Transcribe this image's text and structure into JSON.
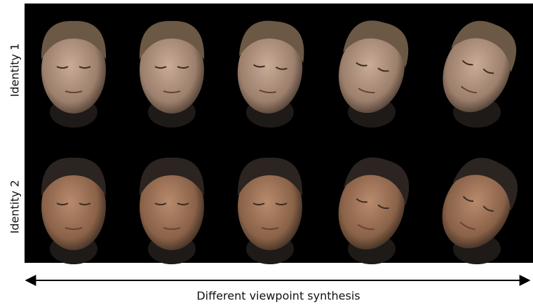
{
  "rows": [
    {
      "label": "Identity 1"
    },
    {
      "label": "Identity 2"
    }
  ],
  "caption": "Different viewpoint synthesis"
}
